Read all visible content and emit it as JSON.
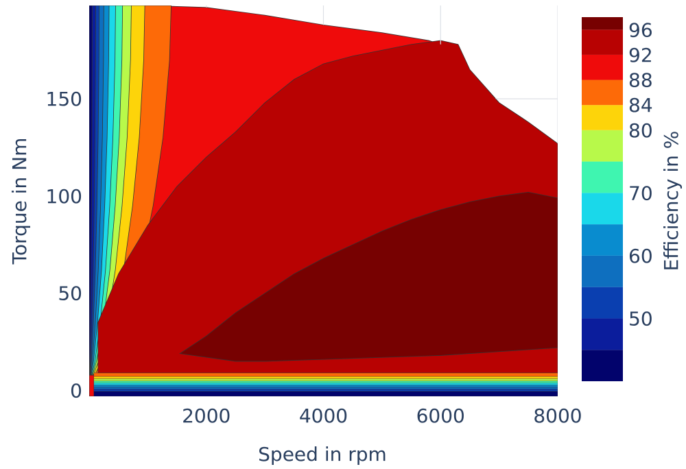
{
  "chart_data": {
    "type": "contour",
    "xlabel": "Speed in rpm",
    "ylabel": "Torque in Nm",
    "xlim": [
      0,
      8000
    ],
    "ylim": [
      -3,
      198
    ],
    "xticks": [
      2000,
      4000,
      6000,
      8000
    ],
    "yticks": [
      0,
      50,
      100,
      150
    ],
    "grid": true,
    "colorbar": {
      "title": "Efficiency in %",
      "range": [
        40,
        98
      ],
      "tick_labels": [
        "50",
        "60",
        "70",
        "80",
        "84",
        "88",
        "92",
        "96"
      ],
      "tick_values": [
        50,
        60,
        70,
        80,
        84,
        88,
        92,
        96
      ],
      "levels": [
        {
          "from": 40,
          "to": 45,
          "color": "#02036c"
        },
        {
          "from": 45,
          "to": 50,
          "color": "#0b1d9c"
        },
        {
          "from": 50,
          "to": 55,
          "color": "#0a3fb0"
        },
        {
          "from": 55,
          "to": 60,
          "color": "#0e6fbf"
        },
        {
          "from": 60,
          "to": 65,
          "color": "#098ccf"
        },
        {
          "from": 65,
          "to": 70,
          "color": "#1ad8ea"
        },
        {
          "from": 70,
          "to": 75,
          "color": "#3ff5b0"
        },
        {
          "from": 75,
          "to": 80,
          "color": "#b8f94a"
        },
        {
          "from": 80,
          "to": 84,
          "color": "#fdd40a"
        },
        {
          "from": 84,
          "to": 88,
          "color": "#fd6a08"
        },
        {
          "from": 88,
          "to": 92,
          "color": "#ef0b0b"
        },
        {
          "from": 92,
          "to": 96,
          "color": "#b80202"
        },
        {
          "from": 96,
          "to": 98,
          "color": "#770101"
        }
      ]
    },
    "max_torque_envelope": {
      "speed": [
        0,
        1000,
        2000,
        3000,
        4000,
        5000,
        5800,
        6200,
        6500,
        7000,
        7500,
        8000
      ],
      "torque": [
        198,
        198,
        197,
        193,
        188,
        184,
        180,
        176,
        165,
        148,
        138,
        127
      ]
    },
    "regions": [
      {
        "level": 92,
        "boundary": {
          "speed": [
            150,
            500,
            1000,
            1500,
            2000,
            2500,
            3000,
            3500,
            4000,
            4500,
            5000,
            5500,
            6000,
            6300,
            6500,
            7000,
            7500,
            8000,
            8000,
            7000,
            6000,
            5000,
            4000,
            3000,
            2000,
            1000,
            400,
            150
          ],
          "torque": [
            35,
            60,
            85,
            105,
            120,
            133,
            148,
            160,
            168,
            172,
            175,
            178,
            180,
            178,
            165,
            148,
            138,
            127,
            9,
            9,
            9,
            9,
            9,
            9,
            9,
            9,
            9,
            9
          ]
        }
      },
      {
        "level": 96,
        "boundary": {
          "speed": [
            1550,
            2000,
            2500,
            3000,
            3500,
            4000,
            4500,
            5000,
            5500,
            6000,
            6500,
            7000,
            7500,
            8000,
            8000,
            7000,
            6000,
            5000,
            4000,
            3000,
            2500,
            1550
          ],
          "torque": [
            19,
            28,
            40,
            50,
            60,
            68,
            75,
            82,
            88,
            93,
            97,
            100,
            102,
            99,
            22,
            20,
            18,
            17,
            16,
            15,
            15,
            19
          ]
        }
      }
    ]
  }
}
